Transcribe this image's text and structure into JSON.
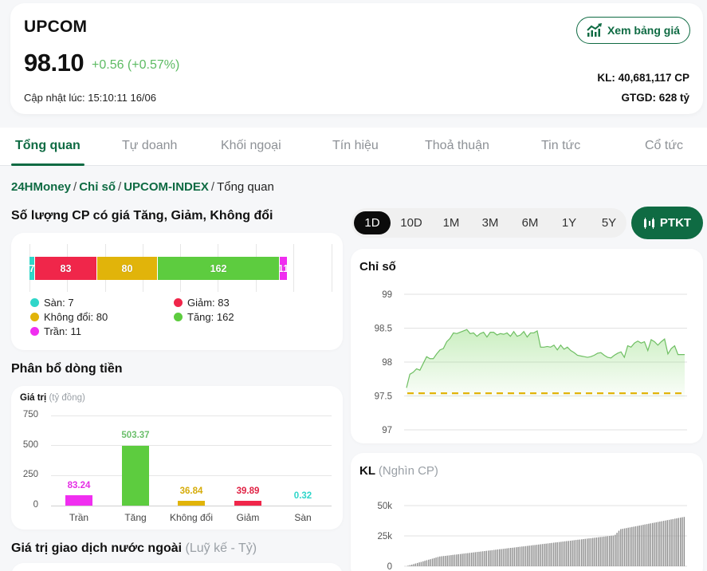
{
  "header": {
    "index_name": "UPCOM",
    "value": "98.10",
    "change": "+0.56 (+0.57%)",
    "updated": "Cập nhật lúc: 15:10:11 16/06",
    "price_board_button": "Xem bảng giá",
    "volume": "KL: 40,681,117 CP",
    "trade_value": "GTGD: 628 tỷ"
  },
  "tabs": [
    {
      "label": "Tổng quan",
      "active": true
    },
    {
      "label": "Tự doanh"
    },
    {
      "label": "Khối ngoại"
    },
    {
      "label": "Tín hiệu"
    },
    {
      "label": "Thoả thuận"
    },
    {
      "label": "Tin tức"
    },
    {
      "label": "Cổ tức"
    }
  ],
  "breadcrumb": {
    "items": [
      "24HMoney",
      "Chỉ số",
      "UPCOM-INDEX"
    ],
    "current": "Tổng quan",
    "separator": "/"
  },
  "sections": {
    "breadth_title": "Số lượng CP có giá Tăng, Giảm, Không đổi",
    "flow_title": "Phân bổ dòng tiền",
    "foreign_title": "Giá trị giao dịch nước ngoài",
    "foreign_unit": "(Luỹ kế - Tỷ)"
  },
  "periods": {
    "options": [
      "1D",
      "10D",
      "1M",
      "3M",
      "6M",
      "1Y",
      "5Y"
    ],
    "selected": "1D",
    "ptkt_label": "PTKT"
  },
  "index_chart": {
    "title": "Chỉ số"
  },
  "volume_chart": {
    "title": "KL",
    "unit": "(Nghìn CP)"
  },
  "colors": {
    "brand": "#0f6b43",
    "up": "#5dcc3f",
    "down": "#f0264a",
    "unchanged": "#e1b40a",
    "ceiling": "#f02ef0",
    "floor": "#2fd6c9",
    "change_text": "#5dbb63"
  },
  "chart_data": [
    {
      "type": "bar",
      "orientation": "horizontal-stacked",
      "title": "Số lượng CP có giá Tăng, Giảm, Không đổi",
      "categories": [
        "Sàn",
        "Giảm",
        "Không đổi",
        "Tăng",
        "Trần"
      ],
      "values": [
        7,
        83,
        80,
        162,
        11
      ],
      "colors": [
        "#2fd6c9",
        "#f0264a",
        "#e1b40a",
        "#5dcc3f",
        "#f02ef0"
      ],
      "legend": [
        "Sàn: 7",
        "Giảm: 83",
        "Không đổi: 80",
        "Tăng: 162",
        "Trần: 11"
      ],
      "grid": true
    },
    {
      "type": "bar",
      "title": "Phân bổ dòng tiền",
      "ylabel": "Giá trị (tỷ đồng)",
      "ytitle_bold": "Giá trị",
      "ytitle_unit": "(tỷ đồng)",
      "categories": [
        "Trần",
        "Tăng",
        "Không đổi",
        "Giảm",
        "Sàn"
      ],
      "values": [
        83.24,
        503.37,
        36.84,
        39.89,
        0.32
      ],
      "labels": [
        "83.24",
        "503.37",
        "36.84",
        "39.89",
        "0.32"
      ],
      "colors": [
        "#f02ef0",
        "#5dcc3f",
        "#e1b40a",
        "#f0264a",
        "#2fd6c9"
      ],
      "yticks": [
        "750",
        "500",
        "250",
        "0"
      ],
      "ylim": [
        0,
        750
      ],
      "grid": true
    },
    {
      "type": "area",
      "title": "Chỉ số",
      "yticks": [
        "99",
        "98.5",
        "98",
        "97.5",
        "97"
      ],
      "ylim": [
        97,
        99
      ],
      "reference_line": 97.54,
      "reference_color": "#e1b40a",
      "series": [
        {
          "name": "UPCOM",
          "values": [
            97.62,
            97.82,
            97.85,
            97.9,
            97.88,
            97.98,
            98.08,
            98.05,
            98.05,
            98.12,
            98.18,
            98.2,
            98.3,
            98.35,
            98.43,
            98.42,
            98.44,
            98.46,
            98.48,
            98.42,
            98.43,
            98.38,
            98.42,
            98.44,
            98.37,
            98.44,
            98.44,
            98.4,
            98.42,
            98.41,
            98.43,
            98.38,
            98.45,
            98.38,
            98.4,
            98.45,
            98.37,
            98.43,
            98.43,
            98.46,
            98.22,
            98.22,
            98.23,
            98.22,
            98.25,
            98.18,
            98.25,
            98.19,
            98.22,
            98.17,
            98.14,
            98.1,
            98.09,
            98.08,
            98.07,
            98.08,
            98.1,
            98.13,
            98.14,
            98.1,
            98.07,
            98.06,
            98.1,
            98.13,
            98.15,
            98.07,
            98.24,
            98.22,
            98.28,
            98.31,
            98.28,
            98.3,
            98.17,
            98.33,
            98.3,
            98.25,
            98.3,
            98.34,
            98.12,
            98.2,
            98.24,
            98.11,
            98.11,
            98.11
          ]
        }
      ],
      "grid": true
    },
    {
      "type": "bar",
      "title": "KL (Nghìn CP)",
      "yticks": [
        "50k",
        "25k",
        "0"
      ],
      "ylim": [
        0,
        50000
      ],
      "series": [
        {
          "name": "KL cumulative",
          "values_approx": "monotonic increasing from ~0 to ~40,681 over ~150 bars",
          "end_value": 40681
        }
      ]
    }
  ]
}
